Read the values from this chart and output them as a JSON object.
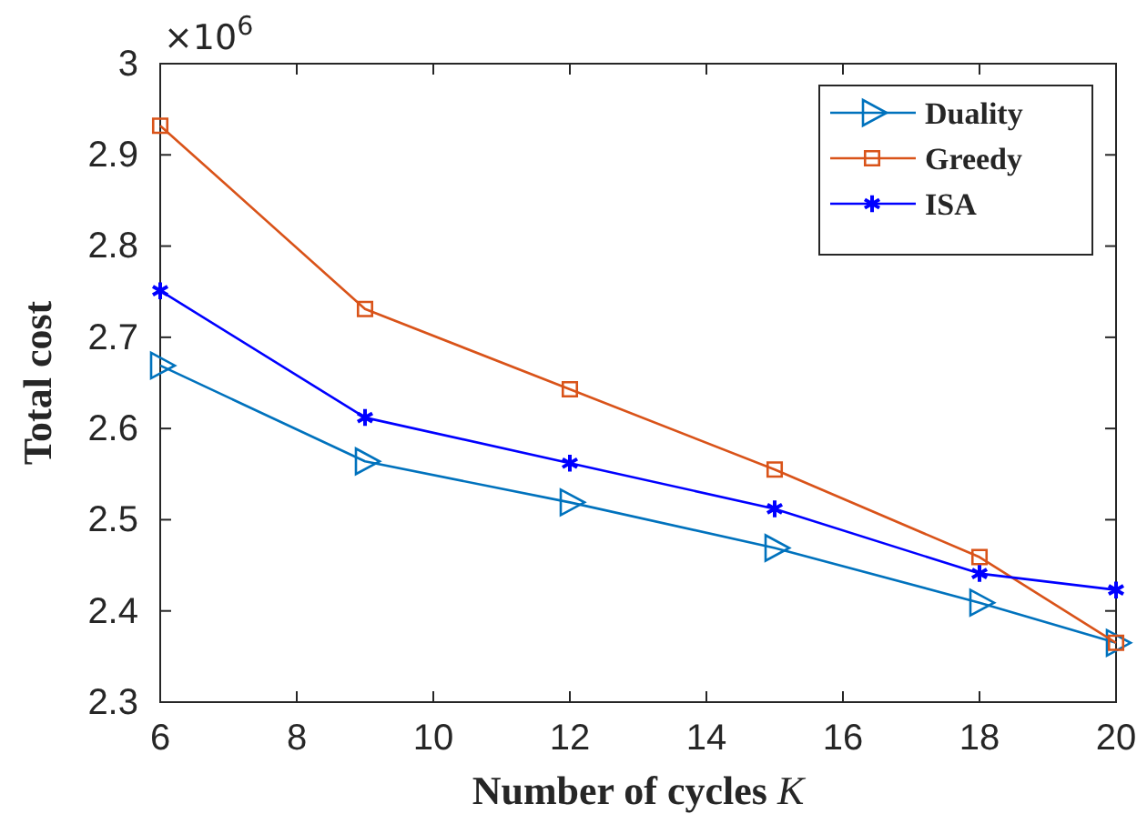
{
  "chart_data": {
    "type": "line",
    "xlabel": "Number of cycles K",
    "ylabel": "Total cost",
    "annotations": [
      "×10$^{6}$"
    ],
    "x": [
      6,
      9,
      12,
      15,
      18,
      20
    ],
    "xlim": [
      6,
      20
    ],
    "xticks": [
      6,
      8,
      10,
      12,
      14,
      16,
      18,
      20
    ],
    "ylim": [
      2.3,
      3
    ],
    "yticks": [
      2.3,
      2.4,
      2.5,
      2.6,
      2.7,
      2.8,
      2.9,
      3
    ],
    "legend": "top right",
    "grid": false,
    "series": [
      {
        "name": "Duality",
        "color": "#0072bd",
        "marker": "triangle",
        "values": [
          2.669,
          2.564,
          2.519,
          2.469,
          2.409,
          2.365
        ]
      },
      {
        "name": "Greedy",
        "color": "#d95319",
        "marker": "square",
        "values": [
          2.932,
          2.731,
          2.643,
          2.555,
          2.459,
          2.365
        ]
      },
      {
        "name": "ISA",
        "color": "#0000ff",
        "marker": "cross",
        "values": [
          2.751,
          2.612,
          2.562,
          2.512,
          2.441,
          2.423
        ]
      }
    ]
  }
}
